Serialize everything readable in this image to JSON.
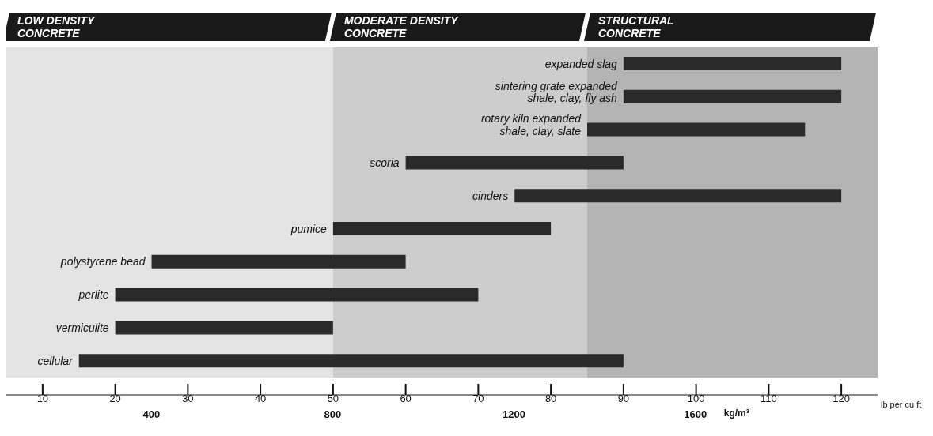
{
  "chart_data": {
    "type": "bar",
    "orientation": "horizontal",
    "categories": [
      "expanded slag",
      "sintering grate expanded\nshale, clay, fly ash",
      "rotary kiln expanded\nshale, clay, slate",
      "scoria",
      "cinders",
      "pumice",
      "polystyrene bead",
      "perlite",
      "vermiculite",
      "cellular"
    ],
    "base": [
      90,
      90,
      85,
      60,
      75,
      50,
      25,
      20,
      20,
      15
    ],
    "values": [
      30,
      30,
      30,
      30,
      45,
      30,
      35,
      50,
      30,
      75
    ],
    "color": "#2a2a2a",
    "xlim": [
      5,
      125
    ],
    "xticks": [
      10,
      20,
      30,
      40,
      50,
      60,
      70,
      80,
      90,
      100,
      110,
      120
    ],
    "xlabel": "lb per cu ft",
    "x2lim": [
      80,
      2002
    ],
    "x2ticks": [
      400,
      800,
      1200,
      1600
    ],
    "x2label": "kg/m³",
    "bands": [
      {
        "axis": "x",
        "from": 5,
        "to": 50,
        "label": "LOW DENSITY\nCONCRETE",
        "color": "#e4e4e4"
      },
      {
        "axis": "x",
        "from": 50,
        "to": 85,
        "label": "MODERATE DENSITY\nCONCRETE",
        "color": "#cdcdcd"
      },
      {
        "axis": "x",
        "from": 85,
        "to": 125,
        "label": "STRUCTURAL\nCONCRETE",
        "color": "#b4b4b4"
      }
    ],
    "grid": false,
    "legend": false
  }
}
